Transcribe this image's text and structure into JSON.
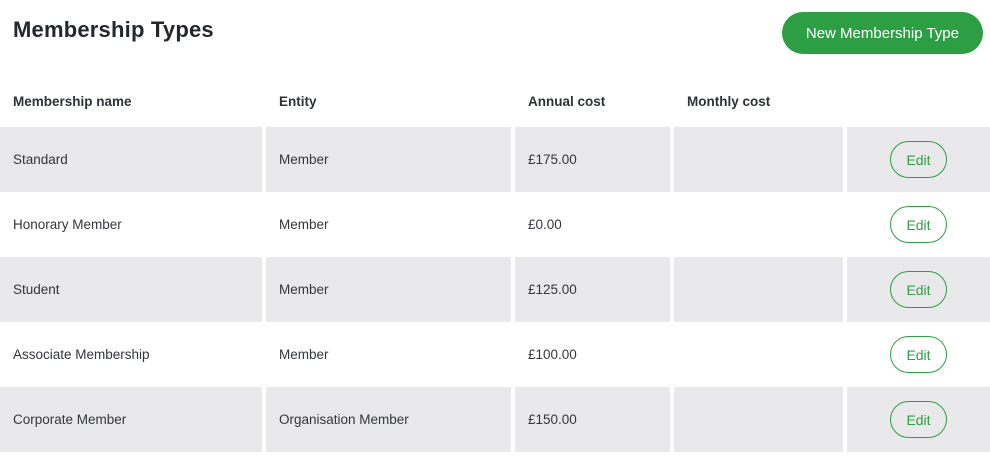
{
  "page": {
    "title": "Membership Types"
  },
  "toolbar": {
    "new_button_label": "New Membership Type"
  },
  "table": {
    "headers": [
      "Membership name",
      "Entity",
      "Annual cost",
      "Monthly cost",
      ""
    ],
    "rows": [
      {
        "name": "Standard",
        "entity": "Member",
        "annual_cost": "£175.00",
        "monthly_cost": "",
        "action": "Edit"
      },
      {
        "name": "Honorary Member",
        "entity": "Member",
        "annual_cost": "£0.00",
        "monthly_cost": "",
        "action": "Edit"
      },
      {
        "name": "Student",
        "entity": "Member",
        "annual_cost": "£125.00",
        "monthly_cost": "",
        "action": "Edit"
      },
      {
        "name": "Associate Membership",
        "entity": "Member",
        "annual_cost": "£100.00",
        "monthly_cost": "",
        "action": "Edit"
      },
      {
        "name": "Corporate Member",
        "entity": "Organisation Member",
        "annual_cost": "£150.00",
        "monthly_cost": "",
        "action": "Edit"
      }
    ]
  },
  "colors": {
    "accent_green": "#2e9e45",
    "row_alt_bg": "#e9e9eb",
    "text_dark": "#24272b"
  }
}
